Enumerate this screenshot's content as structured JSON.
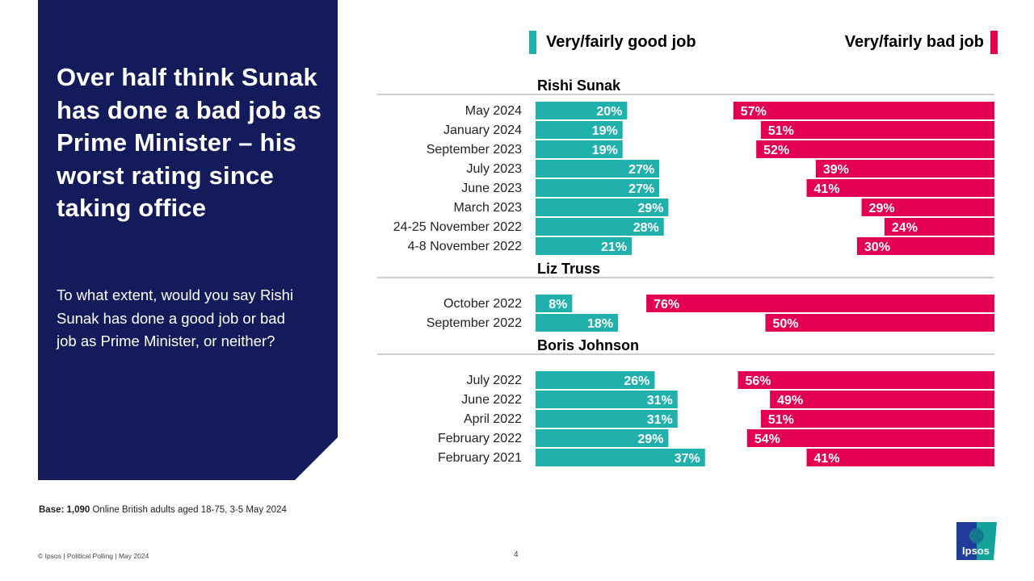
{
  "headline": "Over half think Sunak has done a bad job as Prime Minister – his worst rating since taking office",
  "question": "To what extent, would you say Rishi Sunak has done a good job or bad job as Prime Minister, or neither?",
  "base": {
    "label": "Base: 1,090",
    "text": " Online British adults aged 18-75, 3-5 May 2024"
  },
  "footer": "© Ipsos | Political Polling | May 2024",
  "page_number": "4",
  "logo_text": "Ipsos",
  "colors": {
    "good": "#21b1ad",
    "bad": "#e30052",
    "panel": "#141b5b"
  },
  "chart_data": {
    "type": "bar",
    "orientation": "horizontal",
    "title": "",
    "legend": [
      {
        "name": "Very/fairly good job",
        "color": "#21b1ad",
        "position": "top-left"
      },
      {
        "name": "Very/fairly bad job",
        "color": "#e30052",
        "position": "top-right"
      }
    ],
    "xlim": [
      0,
      100
    ],
    "groups": [
      {
        "name": "Rishi Sunak",
        "categories": [
          "May 2024",
          "January 2024",
          "September 2023",
          "July 2023",
          "June 2023",
          "March 2023",
          "24-25 November 2022",
          "4-8 November 2022"
        ],
        "series": [
          {
            "name": "Very/fairly good job",
            "values": [
              20,
              19,
              19,
              27,
              27,
              29,
              28,
              21
            ]
          },
          {
            "name": "Very/fairly bad job",
            "values": [
              57,
              51,
              52,
              39,
              41,
              29,
              24,
              30
            ]
          }
        ]
      },
      {
        "name": "Liz Truss",
        "categories": [
          "October 2022",
          "September 2022"
        ],
        "series": [
          {
            "name": "Very/fairly good job",
            "values": [
              8,
              18
            ]
          },
          {
            "name": "Very/fairly bad job",
            "values": [
              76,
              50
            ]
          }
        ]
      },
      {
        "name": "Boris Johnson",
        "categories": [
          "July 2022",
          "June 2022",
          "April 2022",
          "February 2022",
          "February 2021"
        ],
        "series": [
          {
            "name": "Very/fairly good job",
            "values": [
              26,
              31,
              31,
              29,
              37
            ]
          },
          {
            "name": "Very/fairly bad job",
            "values": [
              56,
              49,
              51,
              54,
              41
            ]
          }
        ]
      }
    ]
  }
}
